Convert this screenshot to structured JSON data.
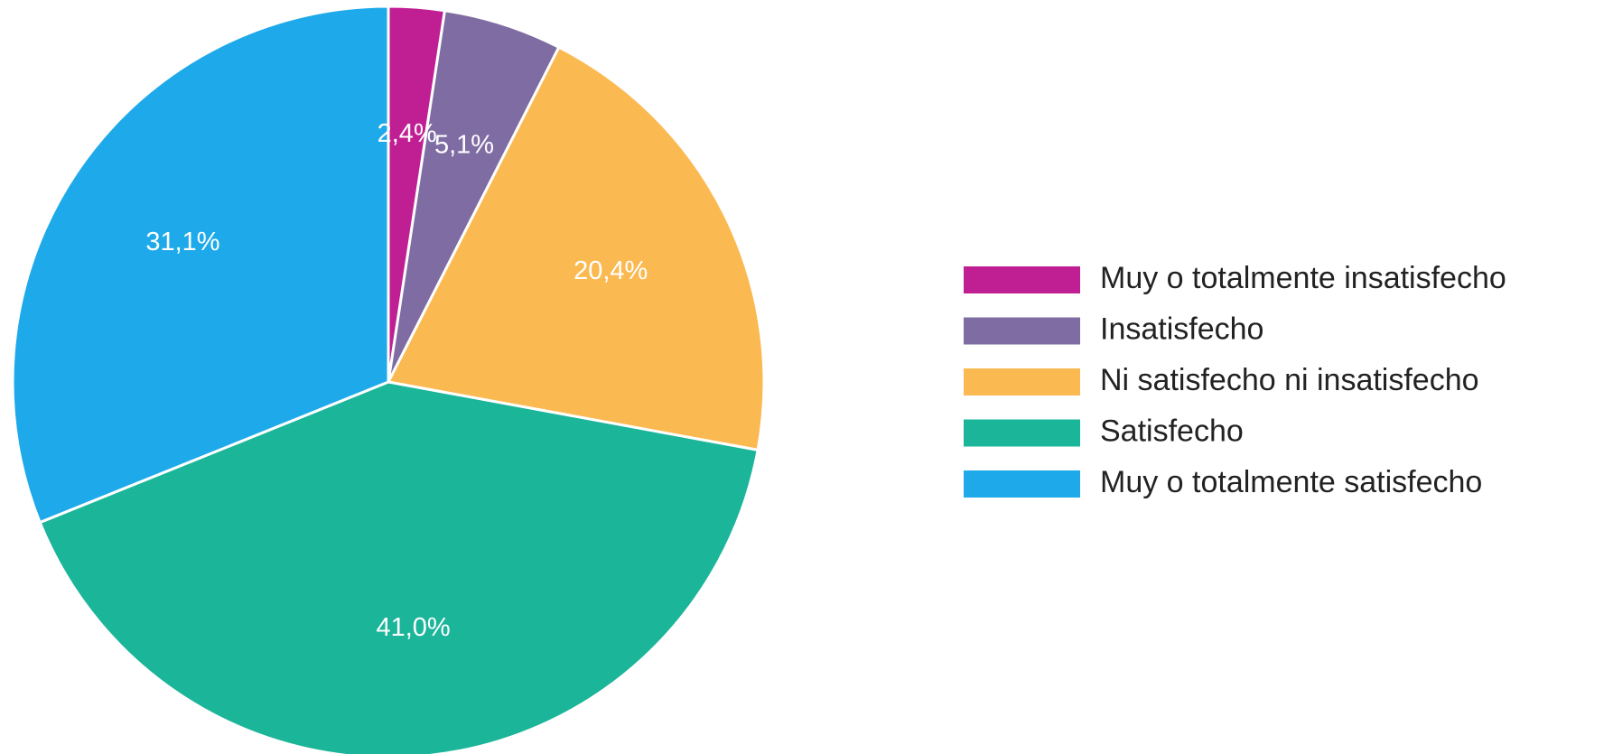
{
  "chart_data": {
    "type": "pie",
    "categories": [
      "Muy o totalmente insatisfecho",
      "Insatisfecho",
      "Ni satisfecho ni insatisfecho",
      "Satisfecho",
      "Muy o totalmente satisfecho"
    ],
    "values": [
      2.4,
      5.1,
      20.4,
      41.0,
      31.1
    ],
    "value_labels": [
      "2,4%",
      "5,1%",
      "20,4%",
      "41,0%",
      "31,1%"
    ],
    "colors": [
      "#c01f93",
      "#7e6ca3",
      "#fbb951",
      "#1bb59a",
      "#1eaaea"
    ],
    "legend": "right"
  }
}
